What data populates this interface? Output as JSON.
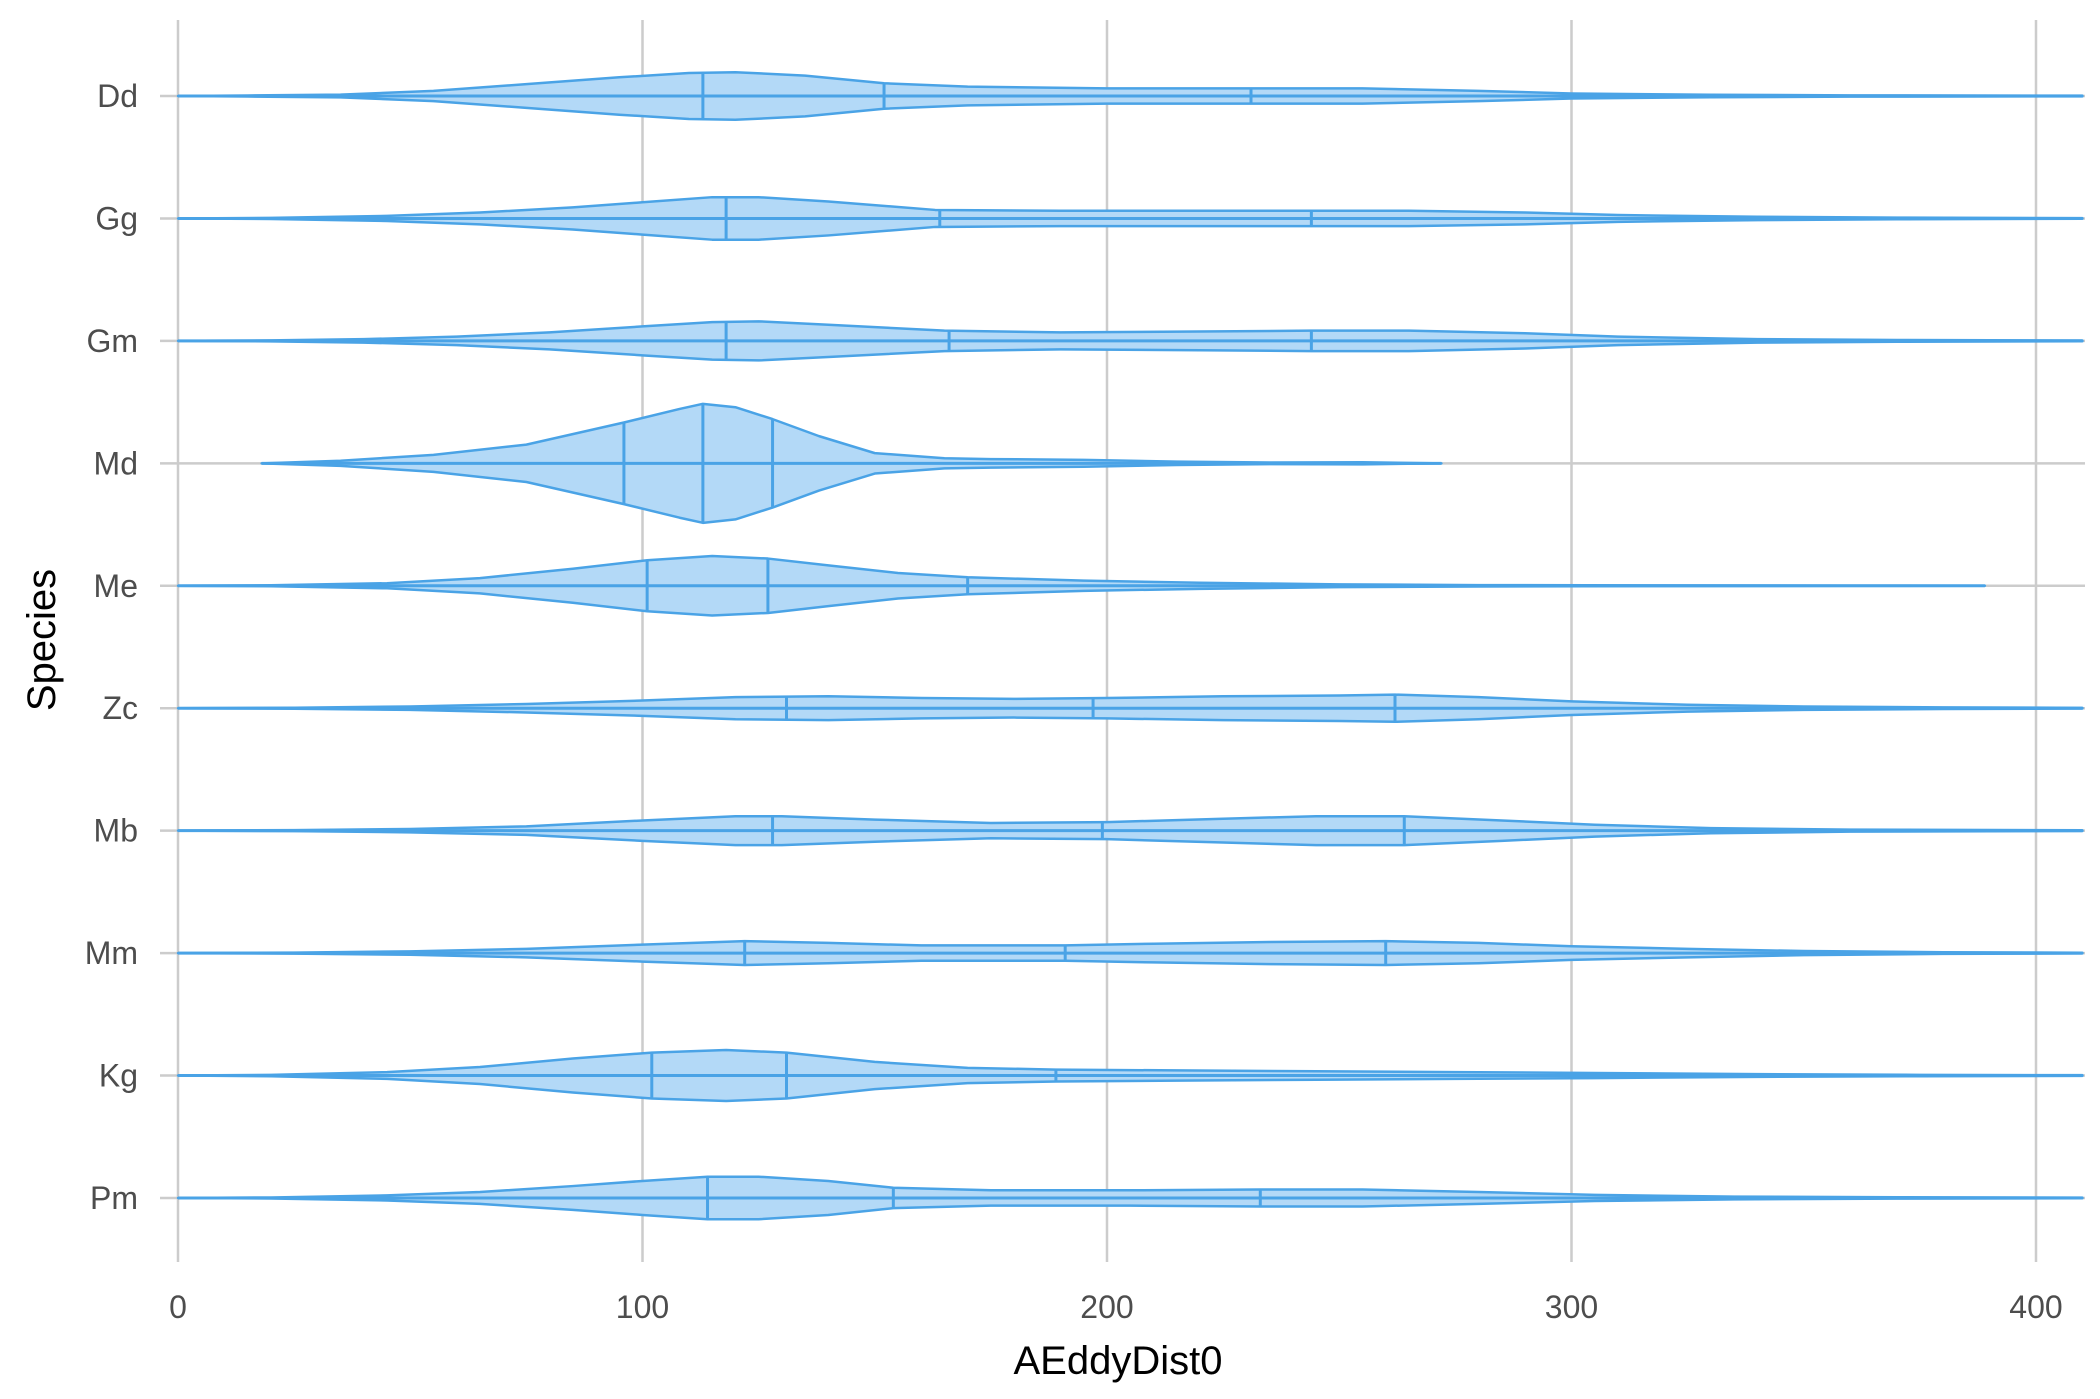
{
  "chart_data": {
    "type": "violin",
    "orientation": "horizontal",
    "xlabel": "AEddyDist0",
    "ylabel": "Species",
    "xlim": [
      0,
      410
    ],
    "x_ticks": [
      0,
      100,
      200,
      300,
      400
    ],
    "grid": true,
    "legend": "none",
    "colors": {
      "fill": "#b3d9f7",
      "stroke": "#4aa3e6",
      "grid": "#cccccc"
    },
    "categories": [
      "Dd",
      "Gg",
      "Gm",
      "Md",
      "Me",
      "Zc",
      "Mb",
      "Mm",
      "Kg",
      "Pm"
    ],
    "series": [
      {
        "species": "Dd",
        "min": 0,
        "max": 410,
        "quantiles": [
          113,
          152,
          231
        ],
        "density": [
          [
            0,
            0
          ],
          [
            15,
            0.3
          ],
          [
            35,
            0.8
          ],
          [
            55,
            3
          ],
          [
            75,
            7
          ],
          [
            95,
            11
          ],
          [
            110,
            13.5
          ],
          [
            120,
            14
          ],
          [
            135,
            12
          ],
          [
            152,
            7.5
          ],
          [
            170,
            5.5
          ],
          [
            200,
            4.5
          ],
          [
            230,
            4.5
          ],
          [
            255,
            4.5
          ],
          [
            280,
            3
          ],
          [
            300,
            1.5
          ],
          [
            330,
            0.7
          ],
          [
            360,
            0.4
          ],
          [
            410,
            0.2
          ]
        ]
      },
      {
        "species": "Gg",
        "min": 0,
        "max": 410,
        "quantiles": [
          118,
          164,
          244
        ],
        "density": [
          [
            0,
            0
          ],
          [
            20,
            0.3
          ],
          [
            45,
            1.5
          ],
          [
            65,
            3.5
          ],
          [
            85,
            6.5
          ],
          [
            100,
            9.5
          ],
          [
            115,
            12.5
          ],
          [
            125,
            12.5
          ],
          [
            140,
            10
          ],
          [
            163,
            5
          ],
          [
            190,
            4.5
          ],
          [
            220,
            4.5
          ],
          [
            244,
            4.5
          ],
          [
            265,
            4.5
          ],
          [
            290,
            3.5
          ],
          [
            310,
            2
          ],
          [
            340,
            1
          ],
          [
            370,
            0.5
          ],
          [
            410,
            0.2
          ]
        ]
      },
      {
        "species": "Gm",
        "min": 0,
        "max": 410,
        "quantiles": [
          118,
          166,
          244
        ],
        "density": [
          [
            0,
            0
          ],
          [
            20,
            0.3
          ],
          [
            40,
            1
          ],
          [
            60,
            2.5
          ],
          [
            80,
            5
          ],
          [
            100,
            8.5
          ],
          [
            115,
            11
          ],
          [
            125,
            11.5
          ],
          [
            140,
            9.5
          ],
          [
            165,
            6
          ],
          [
            190,
            5
          ],
          [
            220,
            5.5
          ],
          [
            244,
            6
          ],
          [
            265,
            6
          ],
          [
            290,
            4.5
          ],
          [
            310,
            2.5
          ],
          [
            340,
            1
          ],
          [
            370,
            0.5
          ],
          [
            410,
            0.2
          ]
        ]
      },
      {
        "species": "Md",
        "min": 18,
        "max": 272,
        "quantiles": [
          96,
          113,
          128
        ],
        "density": [
          [
            18,
            0
          ],
          [
            35,
            1.5
          ],
          [
            55,
            5
          ],
          [
            75,
            11
          ],
          [
            96,
            24
          ],
          [
            108,
            32
          ],
          [
            113,
            35
          ],
          [
            120,
            33
          ],
          [
            128,
            26
          ],
          [
            138,
            16
          ],
          [
            150,
            6
          ],
          [
            165,
            3
          ],
          [
            175,
            2.5
          ],
          [
            195,
            2
          ],
          [
            215,
            1
          ],
          [
            235,
            0.5
          ],
          [
            255,
            0.6
          ],
          [
            272,
            0
          ]
        ]
      },
      {
        "species": "Me",
        "min": 0,
        "max": 389,
        "quantiles": [
          101,
          127,
          170
        ],
        "density": [
          [
            0,
            0
          ],
          [
            20,
            0.3
          ],
          [
            45,
            1.5
          ],
          [
            65,
            4.5
          ],
          [
            85,
            10
          ],
          [
            101,
            15
          ],
          [
            115,
            17.5
          ],
          [
            127,
            16
          ],
          [
            140,
            12
          ],
          [
            155,
            7.5
          ],
          [
            170,
            5
          ],
          [
            195,
            3
          ],
          [
            220,
            1.8
          ],
          [
            250,
            0.8
          ],
          [
            280,
            0.4
          ],
          [
            320,
            0.2
          ],
          [
            360,
            0.1
          ],
          [
            389,
            0
          ]
        ]
      },
      {
        "species": "Zc",
        "min": 0,
        "max": 410,
        "quantiles": [
          131,
          197,
          262
        ],
        "density": [
          [
            0,
            0
          ],
          [
            25,
            0.3
          ],
          [
            50,
            1
          ],
          [
            75,
            2.5
          ],
          [
            100,
            4.5
          ],
          [
            120,
            6.5
          ],
          [
            140,
            7
          ],
          [
            160,
            6
          ],
          [
            180,
            5.5
          ],
          [
            200,
            6
          ],
          [
            225,
            7
          ],
          [
            250,
            7.5
          ],
          [
            262,
            8
          ],
          [
            280,
            6.5
          ],
          [
            300,
            4
          ],
          [
            325,
            2
          ],
          [
            350,
            1
          ],
          [
            380,
            0.5
          ],
          [
            410,
            0.2
          ]
        ]
      },
      {
        "species": "Mb",
        "min": 0,
        "max": 410,
        "quantiles": [
          128,
          199,
          264
        ],
        "density": [
          [
            0,
            0
          ],
          [
            25,
            0.3
          ],
          [
            50,
            1
          ],
          [
            75,
            2.5
          ],
          [
            100,
            6
          ],
          [
            120,
            8.5
          ],
          [
            130,
            8.5
          ],
          [
            150,
            6.5
          ],
          [
            175,
            4.5
          ],
          [
            200,
            5
          ],
          [
            225,
            7
          ],
          [
            245,
            8.5
          ],
          [
            264,
            8.5
          ],
          [
            285,
            6
          ],
          [
            305,
            3.5
          ],
          [
            330,
            1.5
          ],
          [
            360,
            0.6
          ],
          [
            410,
            0.2
          ]
        ]
      },
      {
        "species": "Mm",
        "min": 0,
        "max": 410,
        "quantiles": [
          122,
          191,
          260
        ],
        "density": [
          [
            0,
            0
          ],
          [
            25,
            0.3
          ],
          [
            50,
            1
          ],
          [
            75,
            2.5
          ],
          [
            100,
            5
          ],
          [
            122,
            7
          ],
          [
            140,
            6
          ],
          [
            160,
            4.5
          ],
          [
            191,
            4.5
          ],
          [
            210,
            5.5
          ],
          [
            235,
            6.5
          ],
          [
            260,
            7
          ],
          [
            280,
            6
          ],
          [
            300,
            4
          ],
          [
            325,
            2.5
          ],
          [
            350,
            1.2
          ],
          [
            380,
            0.5
          ],
          [
            410,
            0.2
          ]
        ]
      },
      {
        "species": "Kg",
        "min": 0,
        "max": 410,
        "quantiles": [
          102,
          131,
          189
        ],
        "density": [
          [
            0,
            0
          ],
          [
            20,
            0.4
          ],
          [
            45,
            2
          ],
          [
            65,
            5
          ],
          [
            85,
            10
          ],
          [
            102,
            13.5
          ],
          [
            118,
            15
          ],
          [
            131,
            13.5
          ],
          [
            150,
            8
          ],
          [
            170,
            4.5
          ],
          [
            189,
            3.5
          ],
          [
            215,
            3
          ],
          [
            245,
            2.5
          ],
          [
            275,
            2
          ],
          [
            305,
            1.5
          ],
          [
            340,
            0.8
          ],
          [
            375,
            0.4
          ],
          [
            410,
            0.2
          ]
        ]
      },
      {
        "species": "Pm",
        "min": 0,
        "max": 410,
        "quantiles": [
          114,
          154,
          233
        ],
        "density": [
          [
            0,
            0
          ],
          [
            20,
            0.3
          ],
          [
            45,
            1.5
          ],
          [
            65,
            3.5
          ],
          [
            85,
            7
          ],
          [
            100,
            10
          ],
          [
            114,
            12.5
          ],
          [
            125,
            12.5
          ],
          [
            140,
            10
          ],
          [
            154,
            6
          ],
          [
            175,
            4.5
          ],
          [
            205,
            4.5
          ],
          [
            233,
            5
          ],
          [
            255,
            5
          ],
          [
            280,
            3.5
          ],
          [
            305,
            1.8
          ],
          [
            335,
            0.8
          ],
          [
            370,
            0.4
          ],
          [
            410,
            0.2
          ]
        ]
      }
    ]
  }
}
